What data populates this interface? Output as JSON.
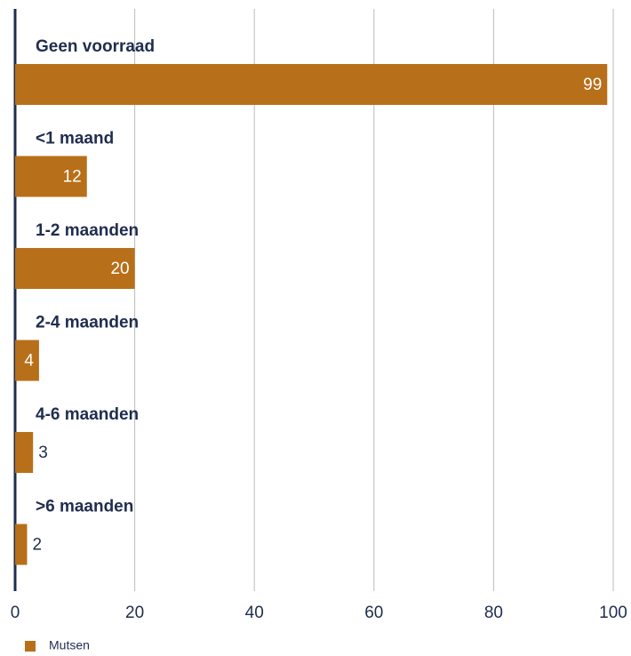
{
  "chart_data": {
    "type": "bar",
    "orientation": "horizontal",
    "categories": [
      "Geen voorraad",
      "<1 maand",
      "1-2 maanden",
      "2-4 maanden",
      "4-6 maanden",
      ">6 maanden"
    ],
    "series": [
      {
        "name": "Mutsen",
        "color": "#b86f19",
        "values": [
          99,
          12,
          20,
          4,
          3,
          2
        ]
      }
    ],
    "xlim": [
      0,
      100
    ],
    "xticks": [
      0,
      20,
      40,
      60,
      80,
      100
    ],
    "grid": true,
    "legend": "bottom-left"
  }
}
